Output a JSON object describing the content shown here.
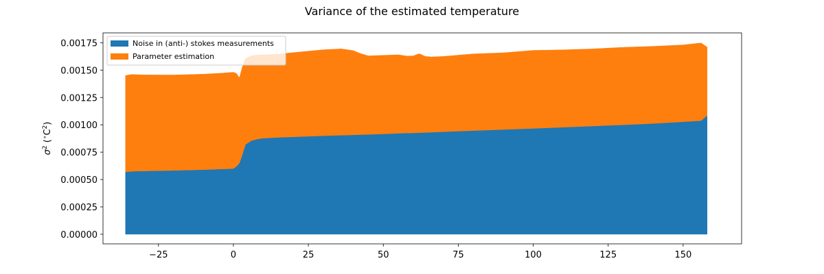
{
  "chart_data": {
    "type": "area",
    "stacked": true,
    "title": "Variance of the estimated temperature",
    "xlabel": "",
    "ylabel": "σ² (°C²)",
    "xlim": [
      -43.5,
      169.5
    ],
    "ylim": [
      -8.8e-05,
      0.00184
    ],
    "x_ticks": [
      -25,
      0,
      25,
      50,
      75,
      100,
      125,
      150
    ],
    "x_tick_labels": [
      "−25",
      "0",
      "25",
      "50",
      "75",
      "100",
      "125",
      "150"
    ],
    "y_ticks": [
      0,
      0.00025,
      0.0005,
      0.00075,
      0.001,
      0.00125,
      0.0015,
      0.00175
    ],
    "y_tick_labels": [
      "0.00000",
      "0.00025",
      "0.00050",
      "0.00075",
      "0.00100",
      "0.00125",
      "0.00150",
      "0.00175"
    ],
    "legend_position": "top-left",
    "x": [
      -36,
      -34,
      -30,
      -20,
      -10,
      -5,
      0,
      1,
      2,
      3,
      4,
      6,
      8,
      10,
      15,
      20,
      30,
      36,
      40,
      42,
      45,
      50,
      55,
      58,
      60,
      62,
      64,
      66,
      70,
      80,
      90,
      100,
      110,
      120,
      130,
      140,
      150,
      156,
      158
    ],
    "series": [
      {
        "name": "Noise in (anti-) stokes measurements",
        "color": "#1f77b4",
        "values": [
          0.00057,
          0.000575,
          0.000578,
          0.000583,
          0.00059,
          0.000595,
          0.0006,
          0.00062,
          0.00065,
          0.00073,
          0.00082,
          0.000855,
          0.00087,
          0.000878,
          0.000885,
          0.00089,
          0.0009,
          0.000905,
          0.000908,
          0.00091,
          0.000912,
          0.000917,
          0.000922,
          0.000925,
          0.000926,
          0.000928,
          0.00093,
          0.000932,
          0.000937,
          0.000947,
          0.000957,
          0.000967,
          0.000978,
          0.000989,
          0.001,
          0.001012,
          0.001028,
          0.001038,
          0.001085
        ]
      },
      {
        "name": "Parameter estimation",
        "color": "#ff7f0e",
        "values": [
          0.00088,
          0.000885,
          0.000878,
          0.000872,
          0.000873,
          0.000875,
          0.00088,
          0.00085,
          0.00078,
          0.0008,
          0.000785,
          0.000776,
          0.000768,
          0.000762,
          0.000761,
          0.00077,
          0.000786,
          0.000789,
          0.00077,
          0.000745,
          0.000718,
          0.000718,
          0.000718,
          0.000703,
          0.000704,
          0.000722,
          0.000695,
          0.000688,
          0.000688,
          0.000701,
          0.000701,
          0.000713,
          0.000707,
          0.000705,
          0.000708,
          0.000705,
          0.000702,
          0.00071,
          0.000625
        ]
      }
    ]
  }
}
